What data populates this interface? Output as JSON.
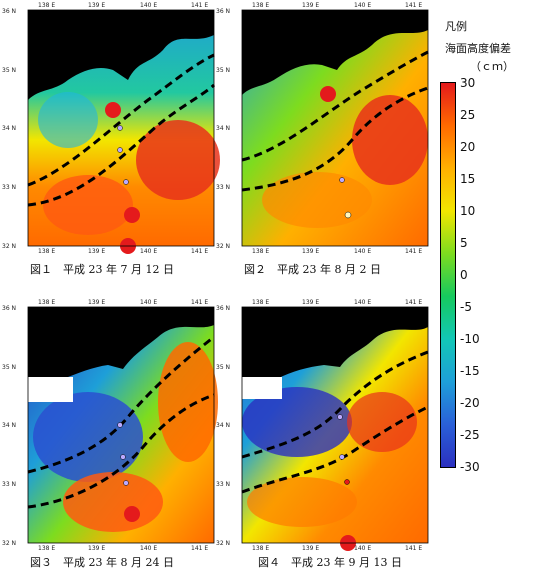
{
  "legend": {
    "title": "凡例",
    "subtitle": "海面高度偏差",
    "unit": "（ｃｍ）",
    "ticks": [
      "30",
      "25",
      "20",
      "15",
      "10",
      "5",
      "0",
      "-5",
      "-10",
      "-15",
      "-20",
      "-25",
      "-30"
    ],
    "colors": [
      "#e41a1c",
      "#ff6a00",
      "#ffb000",
      "#f2e600",
      "#7ddc1f",
      "#16c95e",
      "#12c7b6",
      "#1e9fd8",
      "#2a60d8",
      "#2b30c0"
    ]
  },
  "lon_ticks": [
    "138 E",
    "139 E",
    "140 E",
    "141 E"
  ],
  "lat_ticks": [
    "36 N",
    "35 N",
    "34 N",
    "33 N",
    "32 N"
  ],
  "panels": [
    {
      "caption": "図１　平成 23 年 7 月 12 日"
    },
    {
      "caption": "図２　平成 23 年 8 月 2 日"
    },
    {
      "caption": "図３　平成 23 年 8 月 24 日"
    },
    {
      "caption": "図４　平成 23 年 9 月 13 日"
    }
  ]
}
